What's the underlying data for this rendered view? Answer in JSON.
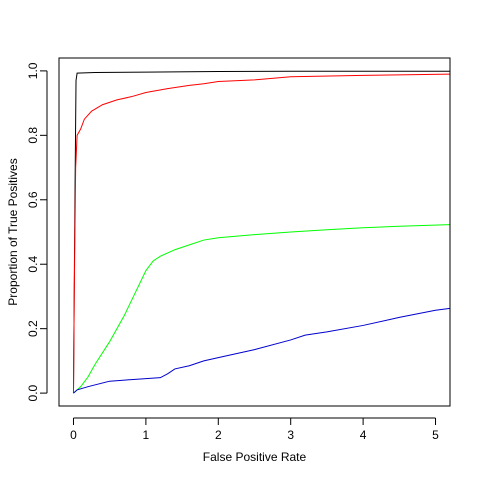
{
  "chart_data": {
    "type": "line",
    "title": "",
    "xlabel": "False Positive Rate",
    "ylabel": "Proportion of True Positives",
    "xlim": [
      -0.2,
      5.2
    ],
    "ylim": [
      -0.04,
      1.04
    ],
    "x_ticks": [
      0,
      1,
      2,
      3,
      4,
      5
    ],
    "x_tick_labels": [
      "0",
      "1",
      "2",
      "3",
      "4",
      "5"
    ],
    "y_ticks": [
      0.0,
      0.2,
      0.4,
      0.6,
      0.8,
      1.0
    ],
    "y_tick_labels": [
      "0.0",
      "0.2",
      "0.4",
      "0.6",
      "0.8",
      "1.0"
    ],
    "grid": false,
    "legend": "none",
    "series": [
      {
        "color": "#000000",
        "points": [
          [
            0,
            0.0
          ],
          [
            0.02,
            0.6
          ],
          [
            0.035,
            0.97
          ],
          [
            0.05,
            0.993
          ],
          [
            0.3,
            0.995
          ],
          [
            1,
            0.996
          ],
          [
            2,
            0.998
          ],
          [
            3,
            0.999
          ],
          [
            5.2,
            0.999
          ]
        ]
      },
      {
        "color": "#ff0000",
        "points": [
          [
            0,
            0.0
          ],
          [
            0.01,
            0.3
          ],
          [
            0.03,
            0.7
          ],
          [
            0.05,
            0.8
          ],
          [
            0.1,
            0.82
          ],
          [
            0.15,
            0.85
          ],
          [
            0.25,
            0.875
          ],
          [
            0.4,
            0.895
          ],
          [
            0.6,
            0.91
          ],
          [
            0.8,
            0.92
          ],
          [
            1.0,
            0.933
          ],
          [
            1.3,
            0.945
          ],
          [
            1.6,
            0.955
          ],
          [
            1.8,
            0.96
          ],
          [
            2.0,
            0.967
          ],
          [
            2.5,
            0.972
          ],
          [
            3.0,
            0.982
          ],
          [
            4.0,
            0.986
          ],
          [
            5.2,
            0.99
          ]
        ]
      },
      {
        "color": "#00ff00",
        "points": [
          [
            0,
            0.0
          ],
          [
            0.1,
            0.02
          ],
          [
            0.2,
            0.05
          ],
          [
            0.3,
            0.09
          ],
          [
            0.5,
            0.16
          ],
          [
            0.7,
            0.24
          ],
          [
            0.85,
            0.31
          ],
          [
            1.0,
            0.38
          ],
          [
            1.1,
            0.41
          ],
          [
            1.2,
            0.425
          ],
          [
            1.4,
            0.445
          ],
          [
            1.6,
            0.46
          ],
          [
            1.8,
            0.475
          ],
          [
            2.0,
            0.482
          ],
          [
            2.5,
            0.492
          ],
          [
            3.0,
            0.5
          ],
          [
            3.5,
            0.507
          ],
          [
            4.0,
            0.513
          ],
          [
            4.5,
            0.518
          ],
          [
            5.2,
            0.523
          ]
        ]
      },
      {
        "color": "#0000cd",
        "points": [
          [
            0,
            0.0
          ],
          [
            0.05,
            0.01
          ],
          [
            0.2,
            0.02
          ],
          [
            0.5,
            0.037
          ],
          [
            0.8,
            0.042
          ],
          [
            1.0,
            0.045
          ],
          [
            1.2,
            0.048
          ],
          [
            1.3,
            0.06
          ],
          [
            1.4,
            0.075
          ],
          [
            1.6,
            0.085
          ],
          [
            1.8,
            0.1
          ],
          [
            2.0,
            0.11
          ],
          [
            2.5,
            0.135
          ],
          [
            3.0,
            0.165
          ],
          [
            3.2,
            0.18
          ],
          [
            3.5,
            0.19
          ],
          [
            4.0,
            0.21
          ],
          [
            4.5,
            0.235
          ],
          [
            5.0,
            0.257
          ],
          [
            5.2,
            0.263
          ]
        ]
      }
    ]
  }
}
